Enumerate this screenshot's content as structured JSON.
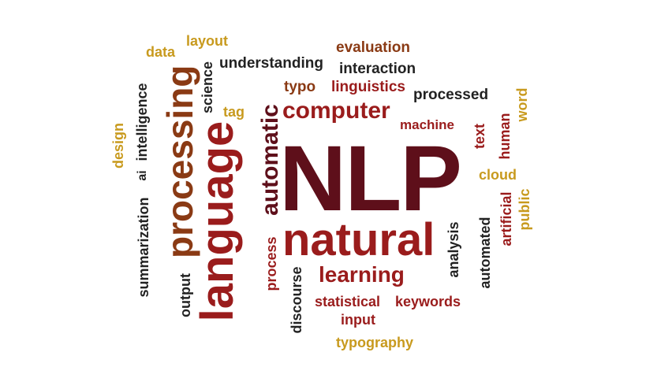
{
  "palette": {
    "dark_maroon": "#5e0f1a",
    "red": "#9a1c1c",
    "gold": "#c89a1e",
    "dark_gray": "#222222",
    "brown": "#8a3a14"
  },
  "words": [
    {
      "id": "nlp",
      "text": "NLP"
    },
    {
      "id": "natural",
      "text": "natural"
    },
    {
      "id": "language",
      "text": "language"
    },
    {
      "id": "processing",
      "text": "processing"
    },
    {
      "id": "computer",
      "text": "computer"
    },
    {
      "id": "automatic",
      "text": "automatic"
    },
    {
      "id": "learning",
      "text": "learning"
    },
    {
      "id": "evaluation",
      "text": "evaluation"
    },
    {
      "id": "interaction",
      "text": "interaction"
    },
    {
      "id": "understanding",
      "text": "understanding"
    },
    {
      "id": "linguistics",
      "text": "linguistics"
    },
    {
      "id": "typo",
      "text": "typo"
    },
    {
      "id": "processed",
      "text": "processed"
    },
    {
      "id": "machine",
      "text": "machine"
    },
    {
      "id": "layout",
      "text": "layout"
    },
    {
      "id": "data",
      "text": "data"
    },
    {
      "id": "science",
      "text": "science"
    },
    {
      "id": "tag",
      "text": "tag"
    },
    {
      "id": "intelligence",
      "text": "intelligence"
    },
    {
      "id": "design",
      "text": "design"
    },
    {
      "id": "ai",
      "text": "ai"
    },
    {
      "id": "summarization",
      "text": "summarization"
    },
    {
      "id": "output",
      "text": "output"
    },
    {
      "id": "process",
      "text": "process"
    },
    {
      "id": "discourse",
      "text": "discourse"
    },
    {
      "id": "statistical",
      "text": "statistical"
    },
    {
      "id": "keywords",
      "text": "keywords"
    },
    {
      "id": "input",
      "text": "input"
    },
    {
      "id": "typography",
      "text": "typography"
    },
    {
      "id": "analysis",
      "text": "analysis"
    },
    {
      "id": "automated",
      "text": "automated"
    },
    {
      "id": "text",
      "text": "text"
    },
    {
      "id": "human",
      "text": "human"
    },
    {
      "id": "word",
      "text": "word"
    },
    {
      "id": "cloud",
      "text": "cloud"
    },
    {
      "id": "artificial",
      "text": "artificial"
    },
    {
      "id": "public",
      "text": "public"
    }
  ]
}
